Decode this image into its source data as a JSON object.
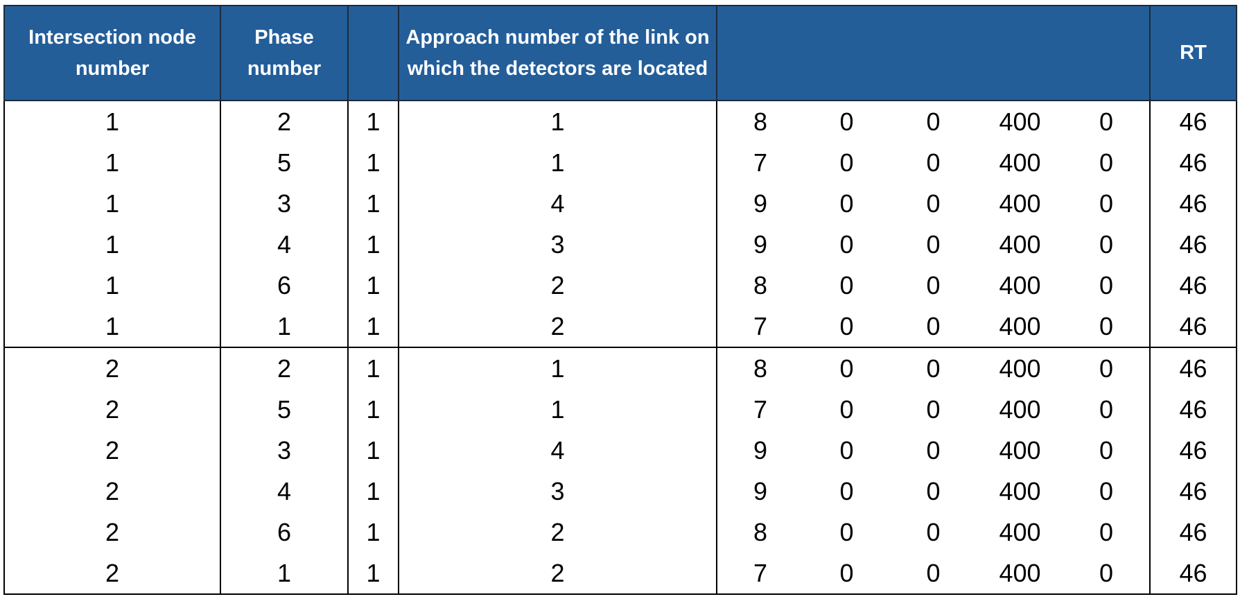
{
  "table": {
    "headers": {
      "node": "Intersection node number",
      "phase": "Phase number",
      "blank": "",
      "approach": "Approach number of the link on which the detectors are located",
      "v1": "",
      "v2": "",
      "v3": "",
      "v4": "",
      "v5": "",
      "rt": "RT"
    },
    "rows": [
      [
        "1",
        "2",
        "1",
        "1",
        "8",
        "0",
        "0",
        "400",
        "0",
        "46"
      ],
      [
        "1",
        "5",
        "1",
        "1",
        "7",
        "0",
        "0",
        "400",
        "0",
        "46"
      ],
      [
        "1",
        "3",
        "1",
        "4",
        "9",
        "0",
        "0",
        "400",
        "0",
        "46"
      ],
      [
        "1",
        "4",
        "1",
        "3",
        "9",
        "0",
        "0",
        "400",
        "0",
        "46"
      ],
      [
        "1",
        "6",
        "1",
        "2",
        "8",
        "0",
        "0",
        "400",
        "0",
        "46"
      ],
      [
        "1",
        "1",
        "1",
        "2",
        "7",
        "0",
        "0",
        "400",
        "0",
        "46"
      ],
      [
        "2",
        "2",
        "1",
        "1",
        "8",
        "0",
        "0",
        "400",
        "0",
        "46"
      ],
      [
        "2",
        "5",
        "1",
        "1",
        "7",
        "0",
        "0",
        "400",
        "0",
        "46"
      ],
      [
        "2",
        "3",
        "1",
        "4",
        "9",
        "0",
        "0",
        "400",
        "0",
        "46"
      ],
      [
        "2",
        "4",
        "1",
        "3",
        "9",
        "0",
        "0",
        "400",
        "0",
        "46"
      ],
      [
        "2",
        "6",
        "1",
        "2",
        "8",
        "0",
        "0",
        "400",
        "0",
        "46"
      ],
      [
        "2",
        "1",
        "1",
        "2",
        "7",
        "0",
        "0",
        "400",
        "0",
        "46"
      ]
    ]
  },
  "colors": {
    "header_bg": "#245e99",
    "header_text": "#ffffff",
    "border": "#000000"
  }
}
